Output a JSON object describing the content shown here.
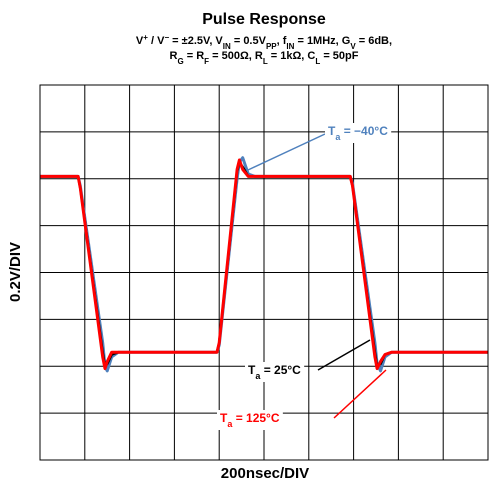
{
  "chart_data": {
    "type": "line",
    "title": "Pulse Response",
    "subtitle": [
      [
        {
          "t": "V"
        },
        {
          "t": "+",
          "s": "sup"
        },
        {
          "t": " / V"
        },
        {
          "t": "−",
          "s": "sup"
        },
        {
          "t": " = ±2.5V, V"
        },
        {
          "t": "IN",
          "s": "sub"
        },
        {
          "t": " = 0.5V"
        },
        {
          "t": "PP",
          "s": "sub"
        },
        {
          "t": ", f"
        },
        {
          "t": "IN",
          "s": "sub"
        },
        {
          "t": " = 1MHz, G"
        },
        {
          "t": "V",
          "s": "sub"
        },
        {
          "t": " = 6dB,"
        }
      ],
      [
        {
          "t": "R"
        },
        {
          "t": "G",
          "s": "sub"
        },
        {
          "t": " = R"
        },
        {
          "t": "F",
          "s": "sub"
        },
        {
          "t": " = 500Ω, R"
        },
        {
          "t": "L",
          "s": "sub"
        },
        {
          "t": " = 1kΩ, C"
        },
        {
          "t": "L",
          "s": "sub"
        },
        {
          "t": " = 50pF"
        }
      ]
    ],
    "x_label": "200nsec/DIV",
    "y_label": "0.2V/DIV",
    "xlim": [
      0,
      2000
    ],
    "ylim": [
      -0.8,
      0.8
    ],
    "xticks": [
      0,
      200,
      400,
      600,
      800,
      1000,
      1200,
      1400,
      1600,
      1800,
      2000
    ],
    "yticks": [
      -0.8,
      -0.6,
      -0.4,
      -0.2,
      0,
      0.2,
      0.4,
      0.6,
      0.8
    ],
    "grid": true,
    "x": [
      0,
      170,
      180,
      280,
      290,
      300,
      320,
      350,
      790,
      800,
      880,
      890,
      905,
      930,
      960,
      1385,
      1395,
      1495,
      1505,
      1520,
      1540,
      1570,
      2000
    ],
    "series": [
      {
        "name": "−40°C",
        "color": "#4f81bd",
        "values": [
          0.41,
          0.41,
          0.37,
          -0.3,
          -0.4,
          -0.42,
          -0.36,
          -0.34,
          -0.34,
          -0.31,
          0.4,
          0.47,
          0.49,
          0.42,
          0.41,
          0.41,
          0.38,
          -0.3,
          -0.39,
          -0.42,
          -0.36,
          -0.34,
          -0.34
        ]
      },
      {
        "name": "25°C",
        "color": "#000000",
        "values": [
          0.41,
          0.41,
          0.36,
          -0.34,
          -0.4,
          -0.39,
          -0.35,
          -0.34,
          -0.34,
          -0.3,
          0.43,
          0.47,
          0.45,
          0.41,
          0.41,
          0.41,
          0.37,
          -0.34,
          -0.4,
          -0.39,
          -0.35,
          -0.34,
          -0.34
        ]
      },
      {
        "name": "125°C",
        "color": "#ff0000",
        "values": [
          0.41,
          0.41,
          0.36,
          -0.36,
          -0.41,
          -0.38,
          -0.34,
          -0.34,
          -0.34,
          -0.3,
          0.44,
          0.48,
          0.44,
          0.41,
          0.41,
          0.41,
          0.37,
          -0.36,
          -0.41,
          -0.38,
          -0.35,
          -0.34,
          -0.34
        ]
      }
    ],
    "annotations": [
      {
        "main": "T",
        "sub": "a",
        "rest": " = −40°C",
        "color": "#4f81bd"
      },
      {
        "main": "T",
        "sub": "a",
        "rest": " = 25°C",
        "color": "#000000"
      },
      {
        "main": "T",
        "sub": "a",
        "rest": " = 125°C",
        "color": "#ff0000"
      }
    ]
  }
}
